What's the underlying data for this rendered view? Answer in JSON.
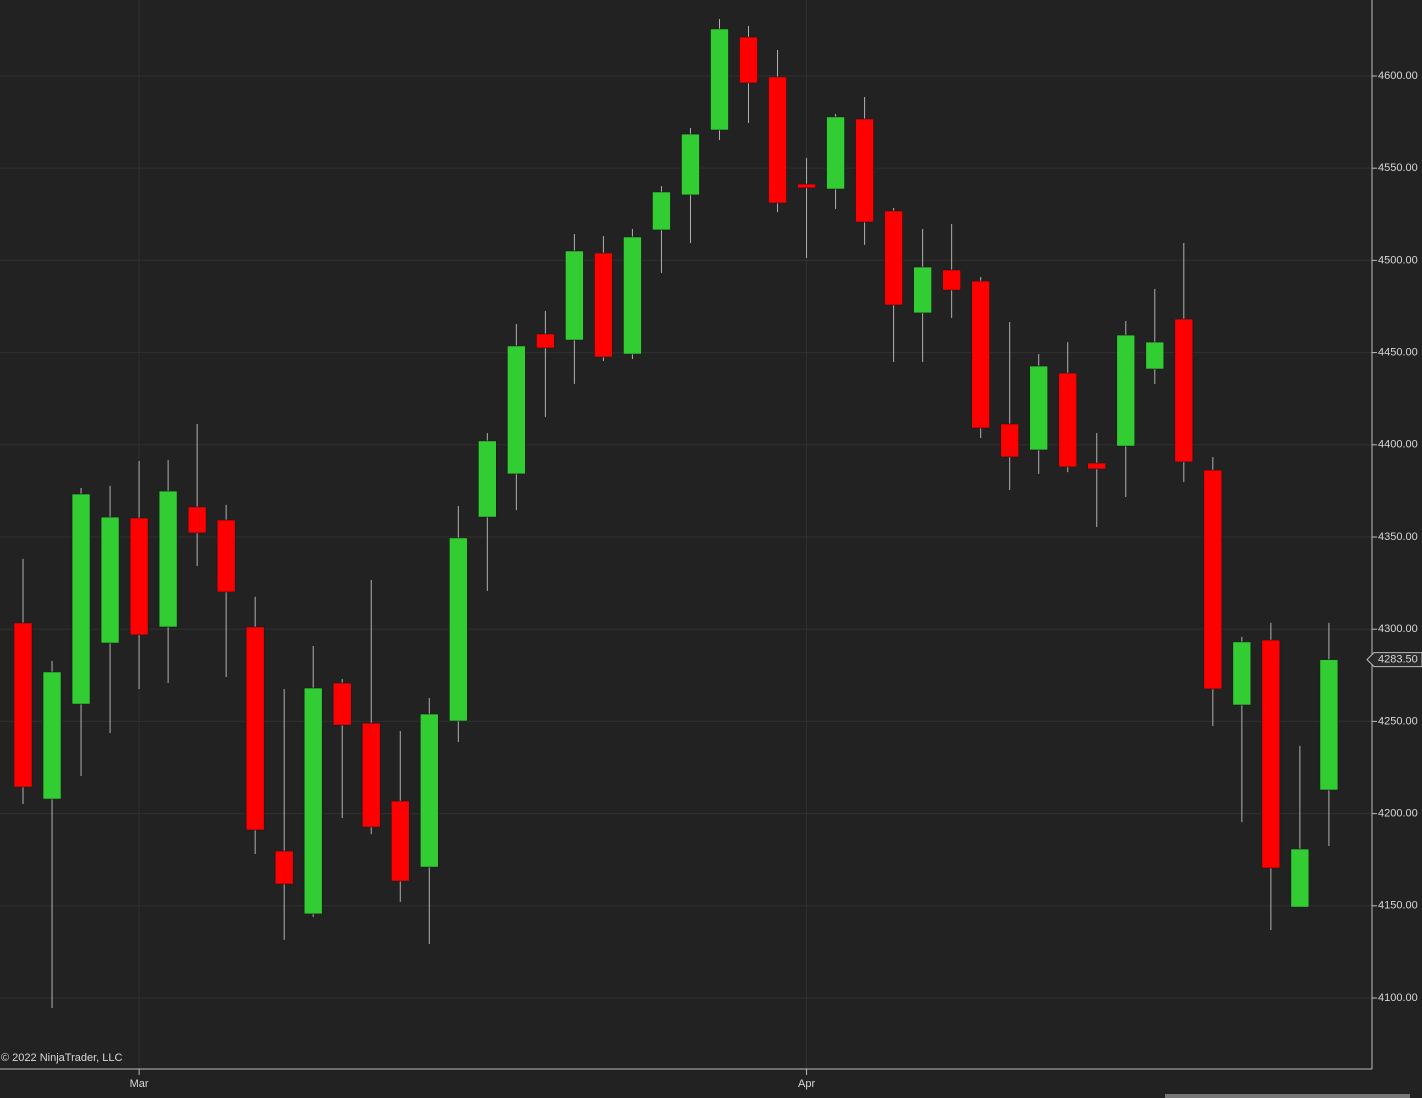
{
  "chart_data": {
    "type": "candlestick",
    "copyright": "© 2022 NinjaTrader, LLC",
    "categories": [
      null,
      null,
      null,
      null,
      "Mar",
      null,
      null,
      null,
      null,
      null,
      null,
      null,
      null,
      null,
      null,
      null,
      null,
      null,
      null,
      null,
      null,
      null,
      null,
      null,
      null,
      null,
      null,
      "Apr",
      null,
      null,
      null,
      null,
      null,
      null,
      null,
      null,
      null,
      null,
      null,
      null,
      null,
      null,
      null,
      null,
      null,
      null
    ],
    "open": [
      4303.4,
      4207.9,
      4259.4,
      4292.5,
      4360.3,
      4301.2,
      4366.3,
      4359.2,
      4301.2,
      4179.7,
      4145.6,
      4270.8,
      4249.1,
      4206.8,
      4171.0,
      4250.2,
      4360.8,
      4384.2,
      4460.1,
      4456.8,
      4504.0,
      4449.2,
      4516.5,
      4535.5,
      4570.7,
      4621.1,
      4599.5,
      4541.4,
      4538.7,
      4576.7,
      4526.8,
      4471.5,
      4494.8,
      4488.8,
      4411.3,
      4397.2,
      4438.9,
      4390.1,
      4399.3,
      4441.1,
      4468.2,
      4386.3,
      4258.9,
      4294.1,
      4149.3,
      4212.8
    ],
    "high": [
      4338.1,
      4282.8,
      4376.6,
      4377.7,
      4391.2,
      4391.7,
      4411.3,
      4367.4,
      4317.5,
      4267.6,
      4290.9,
      4273.0,
      4326.7,
      4244.8,
      4262.7,
      4366.8,
      4406.4,
      4465.5,
      4472.6,
      4514.3,
      4513.2,
      4517.0,
      4540.3,
      4571.8,
      4630.9,
      4627.1,
      4614.1,
      4555.5,
      4579.4,
      4588.6,
      4528.4,
      4517.0,
      4519.7,
      4491.0,
      4466.6,
      4449.2,
      4455.7,
      4406.4,
      4467.1,
      4484.5,
      4509.4,
      4393.4,
      4295.8,
      4303.4,
      4236.7,
      4303.4
    ],
    "low": [
      4205.2,
      4094.6,
      4220.4,
      4243.7,
      4267.6,
      4270.8,
      4334.3,
      4274.1,
      4178.1,
      4131.5,
      4144.0,
      4197.6,
      4188.9,
      4152.1,
      4129.3,
      4238.8,
      4320.7,
      4364.6,
      4415.1,
      4433.0,
      4445.4,
      4446.5,
      4493.2,
      4509.4,
      4565.3,
      4574.5,
      4526.2,
      4501.3,
      4527.9,
      4508.4,
      4444.9,
      4444.9,
      4468.8,
      4403.7,
      4375.5,
      4384.2,
      4385.2,
      4355.4,
      4371.7,
      4433.0,
      4379.8,
      4247.5,
      4195.4,
      4136.9,
      4149.3,
      4182.4
    ],
    "close": [
      4214.4,
      4276.8,
      4373.3,
      4360.8,
      4296.9,
      4374.9,
      4352.2,
      4320.2,
      4191.1,
      4161.8,
      4268.1,
      4248.0,
      4192.7,
      4163.4,
      4254.0,
      4349.5,
      4402.1,
      4453.6,
      4452.5,
      4505.1,
      4447.6,
      4512.7,
      4537.1,
      4568.5,
      4625.5,
      4596.2,
      4531.1,
      4539.3,
      4577.8,
      4520.8,
      4475.8,
      4496.4,
      4483.9,
      4409.1,
      4393.4,
      4442.7,
      4388.0,
      4386.9,
      4459.5,
      4455.7,
      4390.7,
      4267.6,
      4293.1,
      4170.5,
      4180.8,
      4283.5
    ],
    "up_color": "#32cd32",
    "down_color": "#ff0000",
    "ylim": [
      4061.5,
      4641.2
    ],
    "yticks": [
      {
        "value": 4100,
        "label": "4100.00"
      },
      {
        "value": 4150,
        "label": "4150.00"
      },
      {
        "value": 4200,
        "label": "4200.00"
      },
      {
        "value": 4250,
        "label": "4250.00"
      },
      {
        "value": 4300,
        "label": "4300.00"
      },
      {
        "value": 4350,
        "label": "4350.00"
      },
      {
        "value": 4400,
        "label": "4400.00"
      },
      {
        "value": 4450,
        "label": "4450.00"
      },
      {
        "value": 4500,
        "label": "4500.00"
      },
      {
        "value": 4550,
        "label": "4550.00"
      },
      {
        "value": 4600,
        "label": "4600.00"
      }
    ],
    "last_price": {
      "value": 4283.5,
      "label": "4283.50"
    },
    "grid": true
  }
}
